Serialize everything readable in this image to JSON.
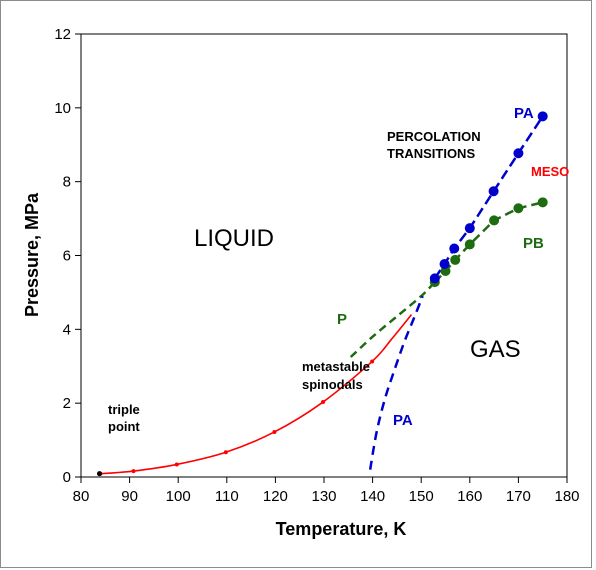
{
  "chart_data": {
    "type": "scatter",
    "title": "",
    "xlabel": "Temperature, K",
    "ylabel": "Pressure, MPa",
    "xlim": [
      80,
      180
    ],
    "ylim": [
      0,
      12
    ],
    "x_ticks": [
      80,
      90,
      100,
      110,
      120,
      130,
      140,
      150,
      160,
      170,
      180
    ],
    "y_ticks": [
      0,
      2,
      4,
      6,
      8,
      10,
      12
    ],
    "x_tick_labels": [
      "80",
      "90",
      "100",
      "110",
      "120",
      "130",
      "140",
      "150",
      "160",
      "170",
      "180"
    ],
    "y_tick_labels": [
      "0",
      "2",
      "4",
      "6",
      "8",
      "10",
      "12"
    ],
    "grid": false,
    "series": [
      {
        "id": "coexistence",
        "color": "#ff0000",
        "style": "solid-line-with-points",
        "x": [
          84,
          90.8,
          99.7,
          109.8,
          119.8,
          129.8,
          139.9,
          144,
          148
        ],
        "y": [
          0.09,
          0.16,
          0.34,
          0.67,
          1.22,
          2.03,
          3.13,
          3.75,
          4.4
        ]
      },
      {
        "id": "triple-point",
        "color": "#000000",
        "style": "point",
        "x": [
          83.8
        ],
        "y": [
          0.09
        ]
      },
      {
        "id": "PA",
        "color": "#0000cc",
        "style": "points-with-dashed-line",
        "x": [
          152.8,
          154.8,
          156.8,
          160,
          164.9,
          170,
          175
        ],
        "y": [
          5.38,
          5.77,
          6.19,
          6.74,
          7.74,
          8.77,
          9.77
        ]
      },
      {
        "id": "PA-spinodal",
        "color": "#0000cc",
        "style": "dashed-line",
        "x": [
          139.5,
          140.8,
          142.5,
          144.5,
          146.5,
          148.5,
          150.3
        ],
        "y": [
          0.2,
          1.2,
          2.1,
          2.9,
          3.65,
          4.3,
          4.9
        ]
      },
      {
        "id": "PB",
        "color": "#1f6b12",
        "style": "points-with-dashed-line",
        "x": [
          152.8,
          155,
          157,
          160,
          165,
          170,
          175
        ],
        "y": [
          5.28,
          5.58,
          5.88,
          6.3,
          6.95,
          7.28,
          7.44
        ]
      },
      {
        "id": "P-spinodal",
        "color": "#1f6b12",
        "style": "dashed-line",
        "x": [
          135.5,
          140,
          145,
          150,
          152.8
        ],
        "y": [
          3.25,
          3.8,
          4.35,
          4.9,
          5.28
        ]
      }
    ],
    "annotations": {
      "liquid": "LIQUID",
      "gas": "GAS",
      "triple": [
        "triple",
        "point"
      ],
      "metastable": [
        "metastable",
        "spinodals"
      ],
      "percolation": [
        "PERCOLATION",
        "TRANSITIONS"
      ],
      "pa_upper": "PA",
      "pa_lower": "PA",
      "meso": "MESO",
      "pb": "PB",
      "p": "P"
    }
  }
}
